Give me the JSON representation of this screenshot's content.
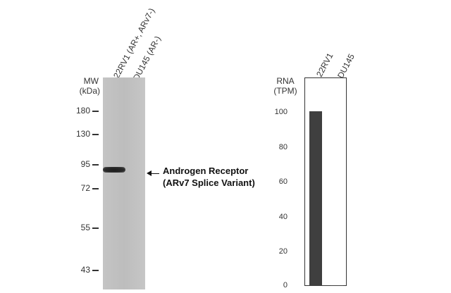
{
  "western_blot": {
    "lanes": [
      "22RV1 (AR+, ARv7-)",
      "DU145 (AR-)"
    ],
    "mw_title_line1": "MW",
    "mw_title_line2": "(kDa)",
    "markers": [
      {
        "label": "180",
        "kda": 180
      },
      {
        "label": "130",
        "kda": 130
      },
      {
        "label": "95",
        "kda": 95
      },
      {
        "label": "72",
        "kda": 72
      },
      {
        "label": "55",
        "kda": 55
      },
      {
        "label": "43",
        "kda": 43
      }
    ],
    "annotation_line1": "Androgen Receptor",
    "annotation_line2": "(ARv7  Splice Variant)"
  },
  "chart_data": {
    "type": "bar",
    "categories": [
      "22RV1",
      "DU145"
    ],
    "values": [
      101,
      0.5
    ],
    "ylabel_line1": "RNA",
    "ylabel_line2": "(TPM)",
    "yticks": [
      "100",
      "80",
      "60",
      "40",
      "20",
      "0"
    ],
    "ylim": [
      0,
      100
    ],
    "bar_color": "#3f3f3f"
  }
}
